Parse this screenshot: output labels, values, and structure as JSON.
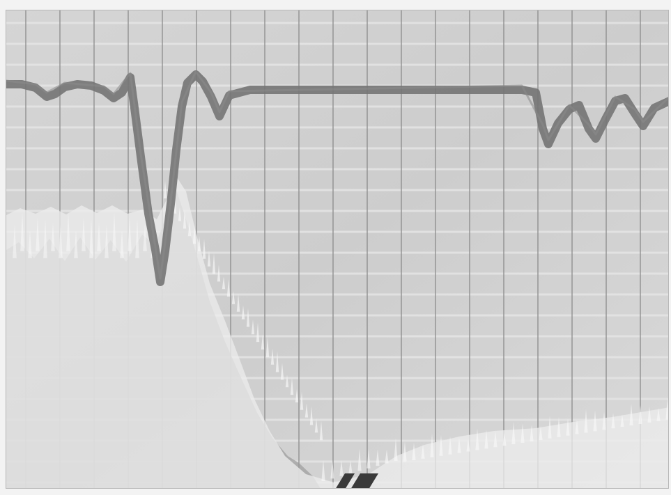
{
  "photo": {
    "kind": "oscilloscope-spectrum-trace",
    "colors": {
      "paper": "#f3f3f3",
      "screen": "#cfcfcf",
      "grid_vertical": "#8d8d8d",
      "grid_horizontal": "#e5e5e5",
      "upper_trace": "#747474",
      "lower_fill": "#9c9c9c",
      "noise": "#f8f8f8",
      "marker": "#3a3a3a"
    },
    "icons": [
      "marker-glyph-icon"
    ]
  }
}
